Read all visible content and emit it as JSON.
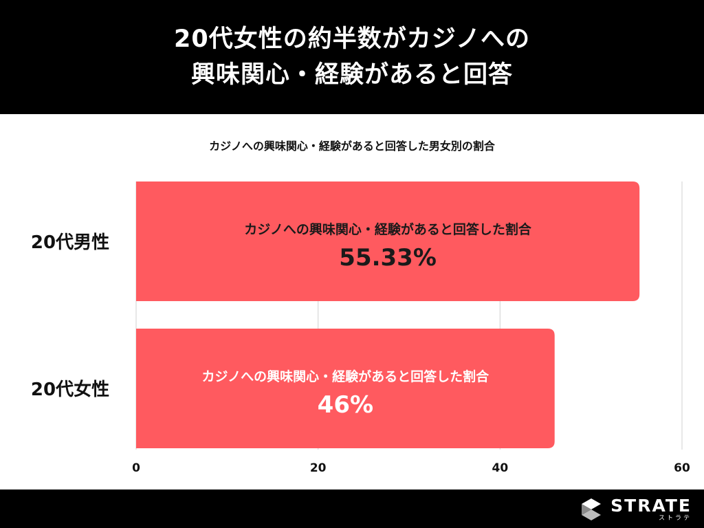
{
  "header": {
    "title_line1": "20代女性の約半数がカジノへの",
    "title_line2": "興味関心・経験があると回答"
  },
  "brand": {
    "name": "STRATE",
    "kana": "ストラテ"
  },
  "colors": {
    "bar": "#FF5A5F",
    "header_bg": "#000000",
    "grid": "#d8d8d8"
  },
  "chart_data": {
    "type": "bar",
    "orientation": "horizontal",
    "title": "カジノへの興味関心・経験があると回答した男女別の割合",
    "categories": [
      "20代男性",
      "20代女性"
    ],
    "series": [
      {
        "name": "カジノへの興味関心・経験があると回答した割合",
        "values": [
          55.33,
          46
        ]
      }
    ],
    "data_labels": [
      "55.33%",
      "46%"
    ],
    "xlim": [
      0,
      60
    ],
    "xticks": [
      0,
      20,
      40,
      60
    ],
    "grid": true
  }
}
